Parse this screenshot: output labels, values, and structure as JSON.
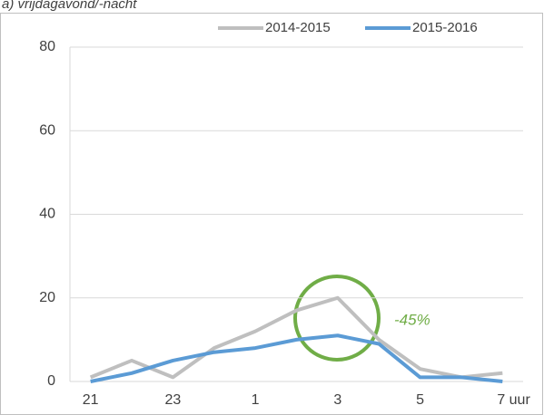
{
  "chart_data": {
    "type": "line",
    "title": "a) vrijdagavond/-nacht",
    "categories": [
      "21",
      null,
      "23",
      null,
      "1",
      null,
      "3",
      null,
      "5",
      null,
      "7 uur"
    ],
    "series": [
      {
        "name": "2014-2015",
        "color": "#bfbfbf",
        "values": [
          1,
          5,
          1,
          8,
          12,
          17,
          20,
          10,
          3,
          1,
          2
        ]
      },
      {
        "name": "2015-2016",
        "color": "#5b9bd5",
        "values": [
          0,
          2,
          5,
          7,
          8,
          10,
          11,
          9,
          1,
          1,
          0
        ]
      }
    ],
    "ylim": [
      0,
      80
    ],
    "yticks": [
      0,
      20,
      40,
      60,
      80
    ],
    "grid": true,
    "legend": "top",
    "annotation": "-45%",
    "annotation_color": "#70ad47"
  }
}
